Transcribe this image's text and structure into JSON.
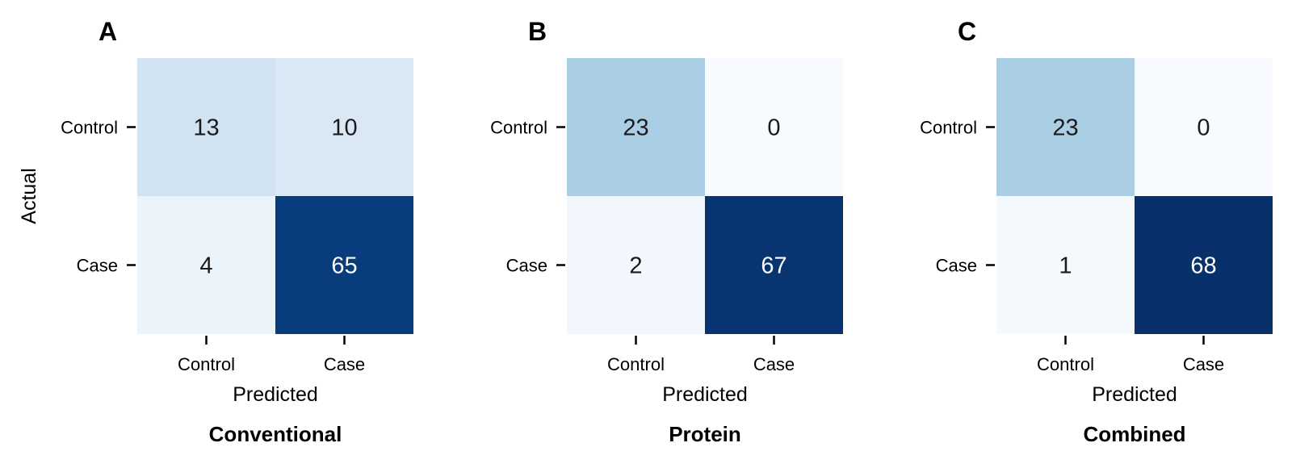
{
  "chart_data": [
    {
      "type": "heatmap",
      "panel": "A",
      "title": "Conventional",
      "xlabel": "Predicted",
      "ylabel": "Actual",
      "x_categories": [
        "Control",
        "Case"
      ],
      "y_categories": [
        "Control",
        "Case"
      ],
      "values": [
        [
          13,
          10
        ],
        [
          4,
          65
        ]
      ],
      "colormap": "Blues",
      "color_range": [
        0,
        68
      ]
    },
    {
      "type": "heatmap",
      "panel": "B",
      "title": "Protein",
      "xlabel": "Predicted",
      "ylabel": "",
      "x_categories": [
        "Control",
        "Case"
      ],
      "y_categories": [
        "Control",
        "Case"
      ],
      "values": [
        [
          23,
          0
        ],
        [
          2,
          67
        ]
      ],
      "colormap": "Blues",
      "color_range": [
        0,
        68
      ]
    },
    {
      "type": "heatmap",
      "panel": "C",
      "title": "Combined",
      "xlabel": "Predicted",
      "ylabel": "",
      "x_categories": [
        "Control",
        "Case"
      ],
      "y_categories": [
        "Control",
        "Case"
      ],
      "values": [
        [
          23,
          0
        ],
        [
          1,
          68
        ]
      ],
      "colormap": "Blues",
      "color_range": [
        0,
        68
      ]
    }
  ]
}
